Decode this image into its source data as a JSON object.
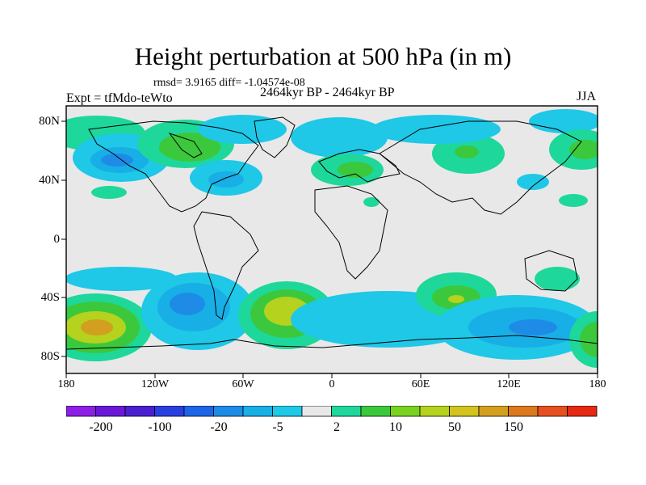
{
  "title": "Height perturbation at 500 hPa (in m)",
  "stats_line": "rmsd= 3.9165 diff= -1.04574e-08",
  "subtitle": "2464kyr BP - 2464kyr BP",
  "experiment": "Expt = tfMdo-teWto",
  "season": "JJA",
  "lat_labels": [
    "80N",
    "40N",
    "0",
    "40S",
    "80S"
  ],
  "lon_labels": [
    "180",
    "120W",
    "60W",
    "0",
    "60E",
    "120E",
    "180"
  ],
  "colorbar": {
    "labels": [
      "-200",
      "-100",
      "-20",
      "-5",
      "2",
      "10",
      "50",
      "150"
    ],
    "colors": [
      "#8c1fe6",
      "#6a18d8",
      "#4a1fd0",
      "#2a3fe0",
      "#1e64e6",
      "#1e8ce6",
      "#18aee6",
      "#1ec8e6",
      "#e8e8e8",
      "#1ed79b",
      "#3cc83c",
      "#7ad21e",
      "#b4d21e",
      "#d2c31e",
      "#d2a01e",
      "#dc781e",
      "#e6501e",
      "#e62814"
    ]
  },
  "map_colors": {
    "ocean": "#e8e8e8",
    "coast": "#000000"
  }
}
